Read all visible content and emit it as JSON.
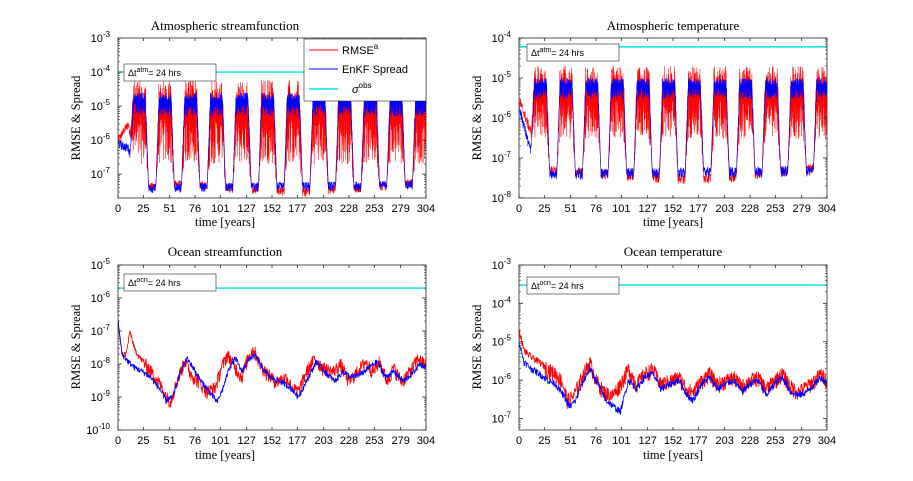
{
  "colors": {
    "rmse": "#ff0000",
    "spread": "#0000ff",
    "obs": "#00e5e5",
    "axis": "#262626"
  },
  "legend": {
    "rmse": "RMSE",
    "rmse_sup": "a",
    "spread": "EnKF Spread",
    "obs": "σ",
    "obs_sup": "obs"
  },
  "chart_data": [
    {
      "type": "line",
      "title": "Atmospheric streamfunction",
      "xlabel": "time [years]",
      "ylabel": "RMSE & Spread",
      "xlim": [
        0,
        304
      ],
      "ylim": [
        2e-08,
        0.001
      ],
      "yscale": "log",
      "xticks": [
        0,
        25,
        51,
        76,
        101,
        127,
        152,
        177,
        203,
        228,
        253,
        279,
        304
      ],
      "yticks": [
        {
          "exp": -7,
          "v": 1e-07
        },
        {
          "exp": -6,
          "v": 1e-06
        },
        {
          "exp": -5,
          "v": 1e-05
        },
        {
          "exp": -4,
          "v": 0.0001
        },
        {
          "exp": -3,
          "v": 0.001
        }
      ],
      "annotation": {
        "base": "Δt",
        "sup": "atm",
        "rest": "= 24 hrs"
      },
      "legend_position": "top-right",
      "series": [
        {
          "name": "RMSE",
          "pattern": "seasonal",
          "y": [
            {
              "x": 0,
              "y": 1e-06
            },
            {
              "x": 10,
              "y": 3e-06
            },
            {
              "x": 25,
              "y": 4e-08
            },
            {
              "x": 50,
              "y": 5e-08
            },
            {
              "x": 76,
              "y": 5e-08
            },
            {
              "x": 101,
              "y": 4e-08
            },
            {
              "x": 127,
              "y": 4e-08
            },
            {
              "x": 177,
              "y": 3e-08
            },
            {
              "x": 304,
              "y": 6e-08
            }
          ],
          "summer_range": [
            2e-07,
            6e-05
          ]
        },
        {
          "name": "EnKF Spread",
          "pattern": "seasonal",
          "y": [
            {
              "x": 0,
              "y": 8e-07
            },
            {
              "x": 10,
              "y": 6e-07
            },
            {
              "x": 25,
              "y": 4e-08
            },
            {
              "x": 304,
              "y": 5e-08
            }
          ],
          "summer_range": [
            5e-06,
            2.5e-05
          ]
        },
        {
          "name": "σ obs",
          "constant": 0.0001
        }
      ]
    },
    {
      "type": "line",
      "title": "Atmospheric temperature",
      "xlabel": "time [years]",
      "ylabel": "RMSE & Spread",
      "xlim": [
        0,
        304
      ],
      "ylim": [
        1e-08,
        0.0001
      ],
      "yscale": "log",
      "xticks": [
        0,
        25,
        51,
        76,
        101,
        127,
        152,
        177,
        203,
        228,
        253,
        279,
        304
      ],
      "yticks": [
        {
          "exp": -8,
          "v": 1e-08
        },
        {
          "exp": -7,
          "v": 1e-07
        },
        {
          "exp": -6,
          "v": 1e-06
        },
        {
          "exp": -5,
          "v": 1e-05
        },
        {
          "exp": -4,
          "v": 0.0001
        }
      ],
      "annotation": {
        "base": "Δt",
        "sup": "atm",
        "rest": "= 24 hrs"
      },
      "series": [
        {
          "name": "RMSE",
          "pattern": "seasonal",
          "y": [
            {
              "x": 0,
              "y": 3e-06
            },
            {
              "x": 10,
              "y": 6e-07
            },
            {
              "x": 25,
              "y": 5e-08
            },
            {
              "x": 177,
              "y": 3e-08
            },
            {
              "x": 304,
              "y": 6e-08
            }
          ],
          "summer_range": [
            3e-07,
            2e-05
          ]
        },
        {
          "name": "EnKF Spread",
          "pattern": "seasonal",
          "y": [
            {
              "x": 0,
              "y": 2e-06
            },
            {
              "x": 10,
              "y": 2e-07
            },
            {
              "x": 25,
              "y": 4e-08
            },
            {
              "x": 304,
              "y": 5e-08
            }
          ],
          "summer_range": [
            3e-06,
            1e-05
          ]
        },
        {
          "name": "σ obs",
          "constant": 6e-05
        }
      ]
    },
    {
      "type": "line",
      "title": "Ocean streamfunction",
      "xlabel": "time [years]",
      "ylabel": "RMSE & Spread",
      "xlim": [
        0,
        304
      ],
      "ylim": [
        1e-10,
        1e-05
      ],
      "yscale": "log",
      "xticks": [
        0,
        25,
        51,
        76,
        101,
        127,
        152,
        177,
        203,
        228,
        253,
        279,
        304
      ],
      "yticks": [
        {
          "exp": -10,
          "v": 1e-10
        },
        {
          "exp": -9,
          "v": 1e-09
        },
        {
          "exp": -8,
          "v": 1e-08
        },
        {
          "exp": -7,
          "v": 1e-07
        },
        {
          "exp": -6,
          "v": 1e-06
        },
        {
          "exp": -5,
          "v": 1e-05
        }
      ],
      "annotation": {
        "base": "Δt",
        "sup": "ocn",
        "rest": "= 24 hrs"
      },
      "series": [
        {
          "name": "RMSE",
          "points": [
            [
              0,
              2e-07
            ],
            [
              4,
              2e-08
            ],
            [
              8,
              2e-08
            ],
            [
              12,
              1e-07
            ],
            [
              16,
              3e-08
            ],
            [
              22,
              1.5e-08
            ],
            [
              30,
              8e-09
            ],
            [
              40,
              3e-09
            ],
            [
              48,
              1e-09
            ],
            [
              52,
              8e-10
            ],
            [
              58,
              3e-09
            ],
            [
              66,
              1.3e-08
            ],
            [
              72,
              5e-09
            ],
            [
              80,
              3e-09
            ],
            [
              88,
              1.5e-09
            ],
            [
              96,
              2e-09
            ],
            [
              102,
              8e-09
            ],
            [
              108,
              2e-08
            ],
            [
              114,
              1e-08
            ],
            [
              122,
              4e-09
            ],
            [
              128,
              1.5e-08
            ],
            [
              134,
              3e-08
            ],
            [
              140,
              1e-08
            ],
            [
              148,
              5e-09
            ],
            [
              156,
              3e-09
            ],
            [
              166,
              4e-09
            ],
            [
              172,
              2e-09
            ],
            [
              178,
              1.5e-09
            ],
            [
              186,
              6e-09
            ],
            [
              194,
              1.5e-08
            ],
            [
              202,
              8e-09
            ],
            [
              212,
              6e-09
            ],
            [
              220,
              1e-08
            ],
            [
              228,
              3e-09
            ],
            [
              236,
              6e-09
            ],
            [
              244,
              1.2e-08
            ],
            [
              252,
              6e-09
            ],
            [
              258,
              1.2e-08
            ],
            [
              266,
              3e-09
            ],
            [
              272,
              8e-09
            ],
            [
              280,
              3e-09
            ],
            [
              288,
              6e-09
            ],
            [
              296,
              1.5e-08
            ],
            [
              304,
              1e-08
            ]
          ]
        },
        {
          "name": "EnKF Spread",
          "points": [
            [
              0,
              2e-07
            ],
            [
              4,
              2e-08
            ],
            [
              10,
              1.2e-08
            ],
            [
              16,
              8e-09
            ],
            [
              24,
              6e-09
            ],
            [
              32,
              4e-09
            ],
            [
              40,
              2e-09
            ],
            [
              48,
              8e-10
            ],
            [
              54,
              1e-09
            ],
            [
              62,
              6e-09
            ],
            [
              68,
              1.5e-08
            ],
            [
              74,
              8e-09
            ],
            [
              82,
              3e-09
            ],
            [
              90,
              1.5e-09
            ],
            [
              98,
              7e-10
            ],
            [
              104,
              2e-09
            ],
            [
              110,
              8e-09
            ],
            [
              116,
              1.5e-08
            ],
            [
              122,
              6e-09
            ],
            [
              130,
              1.5e-08
            ],
            [
              136,
              1.8e-08
            ],
            [
              142,
              8e-09
            ],
            [
              150,
              4e-09
            ],
            [
              160,
              3e-09
            ],
            [
              170,
              2e-09
            ],
            [
              178,
              1e-09
            ],
            [
              188,
              4e-09
            ],
            [
              196,
              1.2e-08
            ],
            [
              204,
              6e-09
            ],
            [
              214,
              3e-09
            ],
            [
              222,
              6e-09
            ],
            [
              230,
              4e-09
            ],
            [
              240,
              5e-09
            ],
            [
              248,
              8e-09
            ],
            [
              256,
              1.2e-08
            ],
            [
              264,
              4e-09
            ],
            [
              272,
              6e-09
            ],
            [
              282,
              3e-09
            ],
            [
              290,
              5e-09
            ],
            [
              298,
              1e-08
            ],
            [
              304,
              8e-09
            ]
          ]
        },
        {
          "name": "σ obs",
          "constant": 2e-06
        }
      ]
    },
    {
      "type": "line",
      "title": "Ocean temperature",
      "xlabel": "time [years]",
      "ylabel": "RMSE & Spread",
      "xlim": [
        0,
        304
      ],
      "ylim": [
        5e-08,
        0.001
      ],
      "yscale": "log",
      "xticks": [
        0,
        25,
        51,
        76,
        101,
        127,
        152,
        177,
        203,
        228,
        253,
        279,
        304
      ],
      "yticks": [
        {
          "exp": -7,
          "v": 1e-07
        },
        {
          "exp": -6,
          "v": 1e-06
        },
        {
          "exp": -5,
          "v": 1e-05
        },
        {
          "exp": -4,
          "v": 0.0001
        },
        {
          "exp": -3,
          "v": 0.001
        }
      ],
      "annotation": {
        "base": "Δt",
        "sup": "ocn",
        "rest": "= 24 hrs"
      },
      "series": [
        {
          "name": "RMSE",
          "points": [
            [
              0,
              2e-05
            ],
            [
              5,
              6e-06
            ],
            [
              12,
              4e-06
            ],
            [
              20,
              3e-06
            ],
            [
              28,
              2e-06
            ],
            [
              36,
              1.5e-06
            ],
            [
              42,
              1e-06
            ],
            [
              48,
              3e-07
            ],
            [
              54,
              4e-07
            ],
            [
              62,
              1.2e-06
            ],
            [
              70,
              3e-06
            ],
            [
              76,
              1e-06
            ],
            [
              84,
              5e-07
            ],
            [
              92,
              4e-07
            ],
            [
              100,
              8e-07
            ],
            [
              108,
              2e-06
            ],
            [
              116,
              8e-07
            ],
            [
              124,
              1.5e-06
            ],
            [
              132,
              2e-06
            ],
            [
              140,
              8e-07
            ],
            [
              150,
              1e-06
            ],
            [
              158,
              1.2e-06
            ],
            [
              166,
              6e-07
            ],
            [
              172,
              5e-07
            ],
            [
              180,
              1e-06
            ],
            [
              188,
              1.5e-06
            ],
            [
              196,
              8e-07
            ],
            [
              204,
              1e-06
            ],
            [
              212,
              1.2e-06
            ],
            [
              220,
              7e-07
            ],
            [
              228,
              1e-06
            ],
            [
              236,
              1.2e-06
            ],
            [
              244,
              6e-07
            ],
            [
              252,
              1e-06
            ],
            [
              260,
              1.5e-06
            ],
            [
              268,
              7e-07
            ],
            [
              276,
              5e-07
            ],
            [
              284,
              7e-07
            ],
            [
              292,
              1e-06
            ],
            [
              298,
              1.5e-06
            ],
            [
              304,
              1e-06
            ]
          ]
        },
        {
          "name": "EnKF Spread",
          "points": [
            [
              0,
              1e-05
            ],
            [
              5,
              3e-06
            ],
            [
              12,
              2e-06
            ],
            [
              20,
              1.5e-06
            ],
            [
              28,
              1e-06
            ],
            [
              36,
              8e-07
            ],
            [
              44,
              4e-07
            ],
            [
              50,
              2e-07
            ],
            [
              56,
              3e-07
            ],
            [
              64,
              1e-06
            ],
            [
              70,
              2e-06
            ],
            [
              78,
              8e-07
            ],
            [
              86,
              3e-07
            ],
            [
              94,
              2e-07
            ],
            [
              100,
              1.5e-07
            ],
            [
              108,
              1e-06
            ],
            [
              116,
              6e-07
            ],
            [
              124,
              1.2e-06
            ],
            [
              132,
              1.5e-06
            ],
            [
              140,
              6e-07
            ],
            [
              150,
              8e-07
            ],
            [
              158,
              1e-06
            ],
            [
              166,
              4e-07
            ],
            [
              172,
              3e-07
            ],
            [
              180,
              8e-07
            ],
            [
              188,
              1.2e-06
            ],
            [
              196,
              6e-07
            ],
            [
              204,
              8e-07
            ],
            [
              212,
              1e-06
            ],
            [
              220,
              5e-07
            ],
            [
              228,
              8e-07
            ],
            [
              236,
              1e-06
            ],
            [
              244,
              4e-07
            ],
            [
              252,
              8e-07
            ],
            [
              260,
              1.2e-06
            ],
            [
              268,
              5e-07
            ],
            [
              276,
              4e-07
            ],
            [
              284,
              5e-07
            ],
            [
              292,
              8e-07
            ],
            [
              298,
              1.2e-06
            ],
            [
              304,
              8e-07
            ]
          ]
        },
        {
          "name": "σ obs",
          "constant": 0.0003
        }
      ]
    }
  ]
}
